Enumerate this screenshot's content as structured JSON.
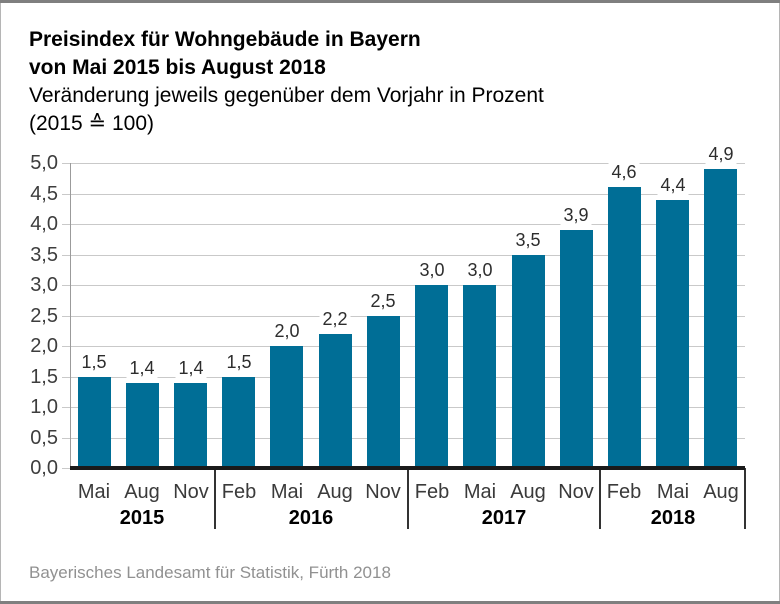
{
  "header": {
    "title_line1": "Preisindex für Wohngebäude in Bayern",
    "title_line2": "von Mai 2015 bis August 2018",
    "subtitle_line1": "Veränderung jeweils gegenüber dem Vorjahr in Prozent",
    "subtitle_line2": "(2015 ≙ 100)"
  },
  "footer": {
    "source": "Bayerisches Landesamt für Statistik, Fürth 2018"
  },
  "frame": {
    "band_color": "#7f7f7f",
    "side_border_color": "#b5b5b5"
  },
  "chart_data": {
    "type": "bar",
    "title": "Preisindex für Wohngebäude in Bayern von Mai 2015 bis August 2018",
    "subtitle": "Veränderung jeweils gegenüber dem Vorjahr in Prozent (2015 ≙ 100)",
    "categories": [
      "Mai",
      "Aug",
      "Nov",
      "Feb",
      "Mai",
      "Aug",
      "Nov",
      "Feb",
      "Mai",
      "Aug",
      "Nov",
      "Feb",
      "Mai",
      "Aug"
    ],
    "values": [
      1.5,
      1.4,
      1.4,
      1.5,
      2.0,
      2.2,
      2.5,
      3.0,
      3.0,
      3.5,
      3.9,
      4.6,
      4.4,
      4.9
    ],
    "value_labels": [
      "1,5",
      "1,4",
      "1,4",
      "1,5",
      "2,0",
      "2,2",
      "2,5",
      "3,0",
      "3,0",
      "3,5",
      "3,9",
      "4,6",
      "4,4",
      "4,9"
    ],
    "year_groups": [
      {
        "label": "2015",
        "count": 3
      },
      {
        "label": "2016",
        "count": 4
      },
      {
        "label": "2017",
        "count": 4
      },
      {
        "label": "2018",
        "count": 3
      }
    ],
    "y_tick_labels": [
      "5,0",
      "4,5",
      "4,0",
      "3,5",
      "3,0",
      "2,5",
      "2,0",
      "1,5",
      "1,0",
      "0,5",
      "0,0"
    ],
    "ylim": [
      0,
      5
    ],
    "y_step": 0.5,
    "grid": true,
    "legend": false,
    "bar_color": "#006e96",
    "grid_color": "#c9c9c9",
    "axis_line_color": "#9b9b9b",
    "baseline_color": "#1a1a1a",
    "xlabel": "",
    "ylabel": ""
  }
}
